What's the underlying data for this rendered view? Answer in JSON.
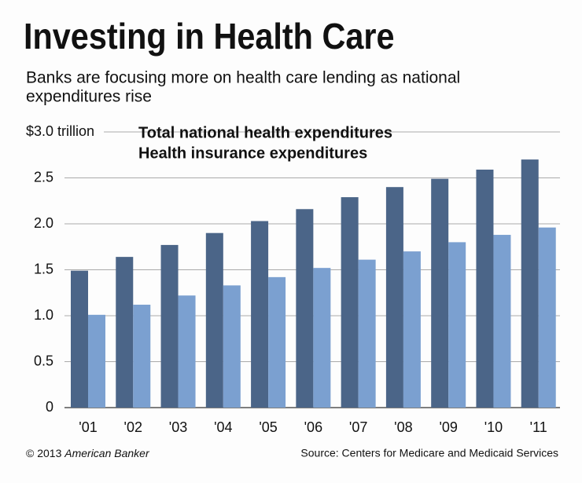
{
  "chart_data": {
    "type": "bar",
    "title": "Investing in Health Care",
    "subtitle": [
      "Banks are focusing more on health care lending as national",
      "expenditures rise"
    ],
    "categories": [
      "'01",
      "'02",
      "'03",
      "'04",
      "'05",
      "'06",
      "'07",
      "'08",
      "'09",
      "'10",
      "'11"
    ],
    "series": [
      {
        "name": "Total national health expenditures",
        "color": "#4b6588",
        "values": [
          1.49,
          1.64,
          1.77,
          1.9,
          2.03,
          2.16,
          2.29,
          2.4,
          2.49,
          2.59,
          2.7
        ]
      },
      {
        "name": "Health insurance expenditures",
        "color": "#7ba0d0",
        "values": [
          1.01,
          1.12,
          1.22,
          1.33,
          1.42,
          1.52,
          1.61,
          1.7,
          1.8,
          1.88,
          1.96
        ]
      }
    ],
    "ylim": [
      0,
      3.0
    ],
    "yticks": [
      0,
      0.5,
      {
        "value": 1.0,
        "label": "1.0"
      },
      1.5,
      {
        "value": 2.0,
        "label": "2.0"
      },
      2.5,
      {
        "value": 3.0,
        "label": "$3.0 trillion"
      }
    ],
    "grid": true,
    "copyright": "© 2013",
    "publisher": "American Banker",
    "source": "Source: Centers for Medicare and Medicaid Services"
  }
}
